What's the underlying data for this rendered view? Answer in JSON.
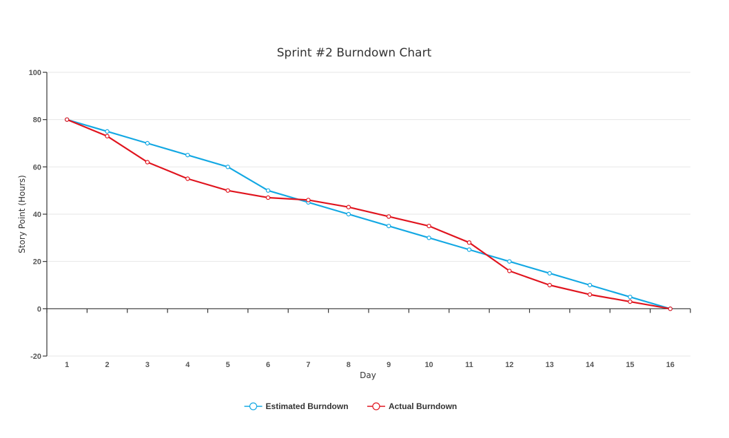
{
  "chart_data": {
    "type": "line",
    "title": "Sprint #2 Burndown Chart",
    "xlabel": "Day",
    "ylabel": "Story Point (Hours)",
    "x": [
      1,
      2,
      3,
      4,
      5,
      6,
      7,
      8,
      9,
      10,
      11,
      12,
      13,
      14,
      15,
      16
    ],
    "ylim": [
      -20,
      100
    ],
    "yticks": [
      -20,
      0,
      20,
      40,
      60,
      80,
      100
    ],
    "grid": true,
    "legend_position": "bottom",
    "series": [
      {
        "name": "Estimated Burndown",
        "color": "#13a8e3",
        "values": [
          80,
          75,
          70,
          65,
          60,
          50,
          45,
          40,
          35,
          30,
          25,
          20,
          15,
          10,
          5,
          0
        ]
      },
      {
        "name": "Actual Burndown",
        "color": "#e0141e",
        "values": [
          80,
          73,
          62,
          55,
          50,
          47,
          46,
          43,
          39,
          35,
          28,
          16,
          10,
          6,
          3,
          0
        ]
      }
    ]
  }
}
